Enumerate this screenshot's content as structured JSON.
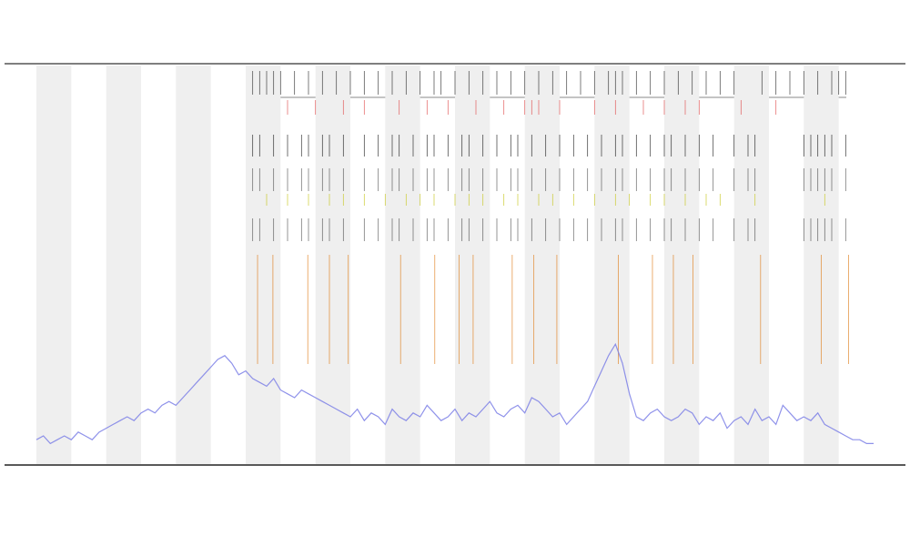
{
  "chart_data": {
    "type": "line",
    "x": [
      0,
      1,
      2,
      3,
      4,
      5,
      6,
      7,
      8,
      9,
      10,
      11,
      12,
      13,
      14,
      15,
      16,
      17,
      18,
      19,
      20,
      21,
      22,
      23,
      24,
      25,
      26,
      27,
      28,
      29,
      30,
      31,
      32,
      33,
      34,
      35,
      36,
      37,
      38,
      39,
      40,
      41,
      42,
      43,
      44,
      45,
      46,
      47,
      48,
      49,
      50,
      51,
      52,
      53,
      54,
      55,
      56,
      57,
      58,
      59,
      60,
      61,
      62,
      63,
      64,
      65,
      66,
      67,
      68,
      69,
      70,
      71,
      72,
      73,
      74,
      75,
      76,
      77,
      78,
      79,
      80,
      81,
      82,
      83,
      84,
      85,
      86,
      87,
      88,
      89,
      90,
      91,
      92,
      93,
      94,
      95,
      96,
      97,
      98,
      99,
      100,
      101,
      102,
      103,
      104,
      105,
      106,
      107,
      108,
      109,
      110,
      111,
      112,
      113,
      114,
      115,
      116,
      117,
      118,
      119,
      120
    ],
    "series": [
      {
        "color": "#7b7fe6",
        "values": [
          4,
          5,
          3,
          4,
          5,
          4,
          6,
          5,
          4,
          6,
          7,
          8,
          9,
          10,
          9,
          11,
          12,
          11,
          13,
          14,
          13,
          15,
          17,
          19,
          21,
          23,
          25,
          26,
          24,
          21,
          22,
          20,
          19,
          18,
          20,
          17,
          16,
          15,
          17,
          16,
          15,
          14,
          13,
          12,
          11,
          10,
          12,
          9,
          11,
          10,
          8,
          12,
          10,
          9,
          11,
          10,
          13,
          11,
          9,
          10,
          12,
          9,
          11,
          10,
          12,
          14,
          11,
          10,
          12,
          13,
          11,
          15,
          14,
          12,
          10,
          11,
          8,
          10,
          12,
          14,
          18,
          22,
          26,
          29,
          24,
          16,
          10,
          9,
          11,
          12,
          10,
          9,
          10,
          12,
          11,
          8,
          10,
          9,
          11,
          7,
          9,
          10,
          8,
          12,
          9,
          10,
          8,
          13,
          11,
          9,
          10,
          9,
          11,
          8,
          7,
          6,
          5,
          4,
          4,
          3,
          3
        ]
      }
    ],
    "tracks": [
      {
        "color": "#333333",
        "x": [
          31,
          32,
          33,
          34,
          35,
          37,
          39,
          41,
          43,
          45,
          47,
          49,
          51,
          53,
          55,
          57,
          58,
          60,
          62,
          64,
          66,
          68,
          70,
          72,
          74,
          76,
          78,
          80,
          82,
          83,
          84,
          86,
          88,
          90,
          92,
          94,
          96,
          98,
          100,
          104,
          106,
          108,
          110,
          112,
          114,
          115,
          116
        ]
      },
      {
        "color": "#e05050",
        "x": [
          36,
          40,
          44,
          47,
          52,
          56,
          59,
          63,
          67,
          70,
          71,
          72,
          75,
          80,
          83,
          87,
          90,
          93,
          95,
          101,
          106
        ]
      },
      {
        "color": "#222222",
        "x": [
          31,
          32,
          34,
          36,
          38,
          39,
          41,
          42,
          44,
          47,
          49,
          51,
          52,
          54,
          56,
          57,
          59,
          61,
          62,
          64,
          66,
          68,
          69,
          71,
          73,
          75,
          77,
          79,
          81,
          83,
          84,
          86,
          88,
          90,
          91,
          93,
          95,
          97,
          100,
          102,
          103,
          110,
          111,
          112,
          113,
          114,
          116
        ]
      },
      {
        "color": "#c8c820",
        "x": [
          33,
          36,
          39,
          42,
          44,
          47,
          50,
          53,
          55,
          57,
          60,
          62,
          64,
          67,
          69,
          72,
          74,
          77,
          80,
          83,
          85,
          88,
          90,
          93,
          96,
          98,
          103,
          113
        ]
      },
      {
        "color": "#e08020",
        "x": [
          31.7,
          33.9,
          38.9,
          42,
          44.7,
          52.2,
          57.1,
          60.6,
          62.6,
          68.2,
          71.3,
          74.6,
          83.4,
          88.3,
          91.3,
          94.1,
          103.8,
          112.5,
          116.4
        ]
      }
    ],
    "xlim": [
      0,
      120
    ],
    "ylim": [
      0,
      100
    ]
  }
}
